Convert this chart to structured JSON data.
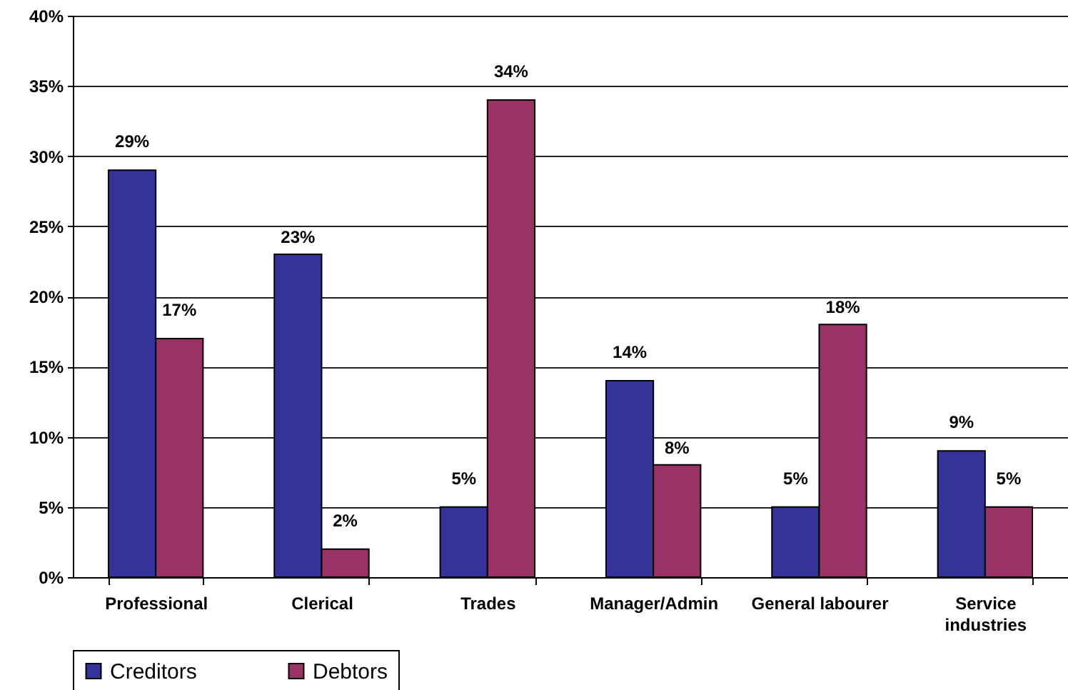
{
  "chart_data": {
    "type": "bar",
    "categories": [
      "Professional",
      "Clerical",
      "Trades",
      "Manager/Admin",
      "General labourer",
      "Service industries"
    ],
    "series": [
      {
        "name": "Creditors",
        "color": "#333399",
        "values": [
          29,
          23,
          5,
          14,
          5,
          9
        ],
        "value_labels": [
          "29%",
          "23%",
          "5%",
          "14%",
          "5%",
          "9%"
        ]
      },
      {
        "name": "Debtors",
        "color": "#993366",
        "values": [
          17,
          2,
          34,
          8,
          18,
          5
        ],
        "value_labels": [
          "17%",
          "2%",
          "34%",
          "8%",
          "18%",
          "5%"
        ]
      }
    ],
    "ylim": [
      0,
      40
    ],
    "yticks": [
      {
        "value": 0,
        "label": "0%"
      },
      {
        "value": 5,
        "label": "5%"
      },
      {
        "value": 10,
        "label": "10%"
      },
      {
        "value": 15,
        "label": "15%"
      },
      {
        "value": 20,
        "label": "20%"
      },
      {
        "value": 25,
        "label": "25%"
      },
      {
        "value": 30,
        "label": "30%"
      },
      {
        "value": 35,
        "label": "35%"
      },
      {
        "value": 40,
        "label": "40%"
      }
    ],
    "grid": "y",
    "legend": "bottom"
  }
}
